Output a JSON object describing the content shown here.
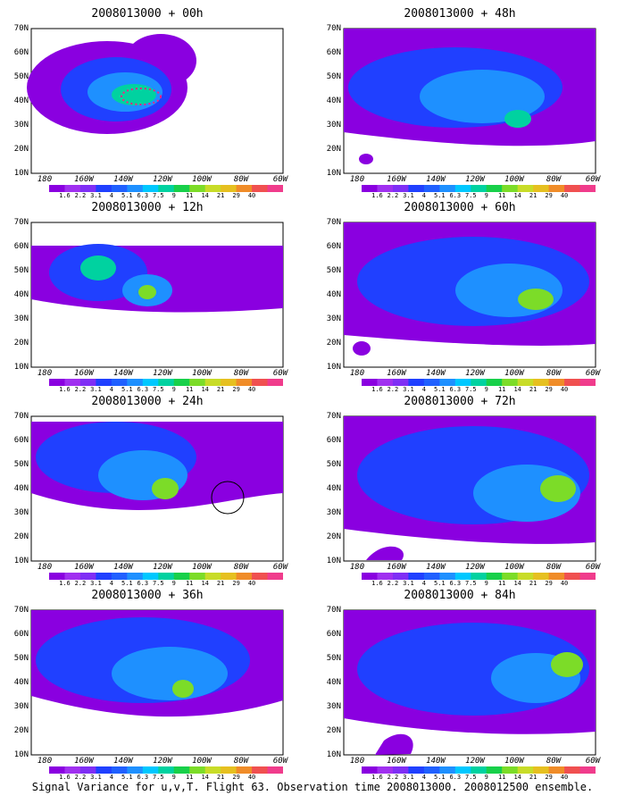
{
  "caption": "Signal Variance for u,v,T. Flight 63. Observation time 2008013000. 2008012500 ensemble.",
  "lat_labels": [
    "70N",
    "60N",
    "50N",
    "40N",
    "30N",
    "20N",
    "10N"
  ],
  "lon_labels": [
    "180",
    "160W",
    "140W",
    "120W",
    "100W",
    "80W",
    "60W"
  ],
  "colorbar": {
    "labels": [
      "1.6",
      "2.2",
      "3.1",
      "4",
      "5.1",
      "6.3",
      "7.5",
      "9",
      "11",
      "14",
      "21",
      "29",
      "40"
    ],
    "colors": [
      "#8a00e0",
      "#a030f0",
      "#7f2ff5",
      "#2040ff",
      "#2060ff",
      "#1e90ff",
      "#00c8ff",
      "#00d2a0",
      "#18d04a",
      "#7cdc28",
      "#c8dc28",
      "#e6c020",
      "#f08c28",
      "#f05050",
      "#f03c8c"
    ]
  },
  "panels": [
    {
      "title": "2008013000 + 00h"
    },
    {
      "title": "2008013000 + 48h"
    },
    {
      "title": "2008013000 + 12h"
    },
    {
      "title": "2008013000 + 60h"
    },
    {
      "title": "2008013000 + 24h"
    },
    {
      "title": "2008013000 + 72h"
    },
    {
      "title": "2008013000 + 36h"
    },
    {
      "title": "2008013000 + 84h"
    }
  ]
}
